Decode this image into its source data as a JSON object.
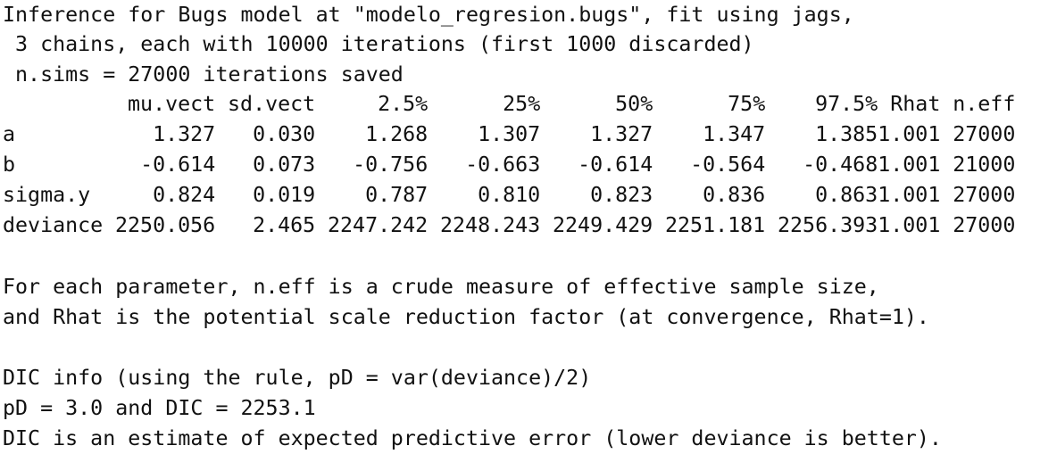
{
  "header": {
    "line1": "Inference for Bugs model at \"modelo_regresion.bugs\", fit using jags,",
    "line2": " 3 chains, each with 10000 iterations (first 1000 discarded)",
    "line3": " n.sims = 27000 iterations saved"
  },
  "table": {
    "columns": [
      "mu.vect",
      "sd.vect",
      "2.5%",
      "25%",
      "50%",
      "75%",
      "97.5%",
      "Rhat",
      "n.eff"
    ],
    "rows": [
      {
        "name": "a",
        "values": [
          "1.327",
          "0.030",
          "1.268",
          "1.307",
          "1.327",
          "1.347",
          "1.385",
          "1.001",
          "27000"
        ]
      },
      {
        "name": "b",
        "values": [
          "-0.614",
          "0.073",
          "-0.756",
          "-0.663",
          "-0.614",
          "-0.564",
          "-0.468",
          "1.001",
          "21000"
        ]
      },
      {
        "name": "sigma.y",
        "values": [
          "0.824",
          "0.019",
          "0.787",
          "0.810",
          "0.823",
          "0.836",
          "0.863",
          "1.001",
          "27000"
        ]
      },
      {
        "name": "deviance",
        "values": [
          "2250.056",
          "2.465",
          "2247.242",
          "2248.243",
          "2249.429",
          "2251.181",
          "2256.393",
          "1.001",
          "27000"
        ]
      }
    ]
  },
  "notes": {
    "line1": "For each parameter, n.eff is a crude measure of effective sample size,",
    "line2": "and Rhat is the potential scale reduction factor (at convergence, Rhat=1)."
  },
  "dic": {
    "line1": "DIC info (using the rule, pD = var(deviance)/2)",
    "line2": "pD = 3.0 and DIC = 2253.1",
    "line3": "DIC is an estimate of expected predictive error (lower deviance is better)."
  }
}
